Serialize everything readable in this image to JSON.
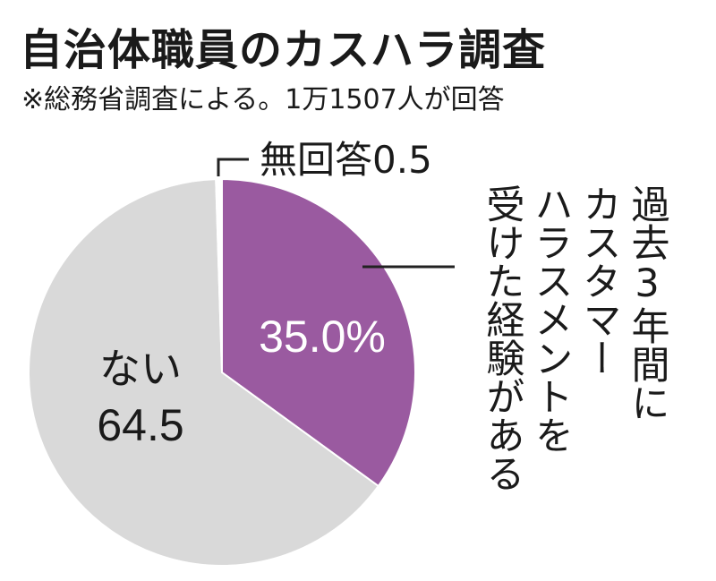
{
  "title": "自治体職員のカスハラ調査",
  "subtitle": "※総務省調査による。1万1507人が回答",
  "colors": {
    "yes": "#9a5aa0",
    "no": "#d9d9d9",
    "noanswer": "#ffffff",
    "line": "#222222"
  },
  "chart_data": {
    "type": "pie",
    "title": "自治体職員のカスハラ調査",
    "slices": [
      {
        "label": "過去3年間にカスタマーハラスメントを受けた経験がある",
        "value": 35.0,
        "display": "35.0%",
        "color": "#9a5aa0"
      },
      {
        "label": "ない",
        "value": 64.5,
        "display": "64.5",
        "color": "#d9d9d9"
      },
      {
        "label": "無回答",
        "value": 0.5,
        "display": "0.5",
        "color": "#ffffff"
      }
    ]
  },
  "labels": {
    "yes_value": "35.0%",
    "yes_lines": [
      "過去3年間に",
      "カスタマー",
      "ハラスメントを",
      "受けた経験がある"
    ],
    "no_label": "ない",
    "no_value": "64.5",
    "noanswer_label": "無回答0.5"
  }
}
